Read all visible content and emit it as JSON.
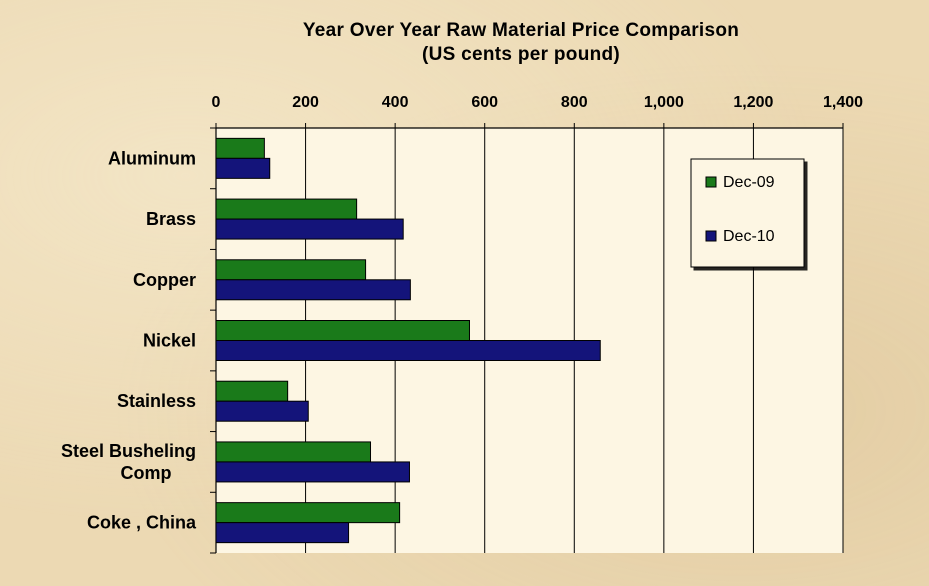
{
  "chart_data": {
    "type": "bar",
    "orientation": "horizontal",
    "title": "Year Over Year Raw Material Price Comparison",
    "subtitle": "(US cents per pound)",
    "categories": [
      [
        "Aluminum"
      ],
      [
        "Brass"
      ],
      [
        "Copper"
      ],
      [
        "Nickel"
      ],
      [
        "Stainless"
      ],
      [
        "Steel Busheling",
        "Comp"
      ],
      [
        "Coke , China"
      ]
    ],
    "series": [
      {
        "name": "Dec-09",
        "color": "#1a7a1a",
        "values": [
          108,
          314,
          334,
          566,
          160,
          345,
          410
        ]
      },
      {
        "name": "Dec-10",
        "color": "#14147a",
        "values": [
          120,
          418,
          434,
          858,
          206,
          432,
          296
        ]
      }
    ],
    "xlim": [
      0,
      1400
    ],
    "x_ticks": [
      0,
      200,
      400,
      600,
      800,
      1000,
      1200,
      1400
    ],
    "x_tick_labels": [
      "0",
      "200",
      "400",
      "600",
      "800",
      "1,000",
      "1,200",
      "1,400"
    ],
    "x_axis_position": "top",
    "grid": true,
    "legend_position": "top-right",
    "plot_background": "#fdf6e3"
  }
}
